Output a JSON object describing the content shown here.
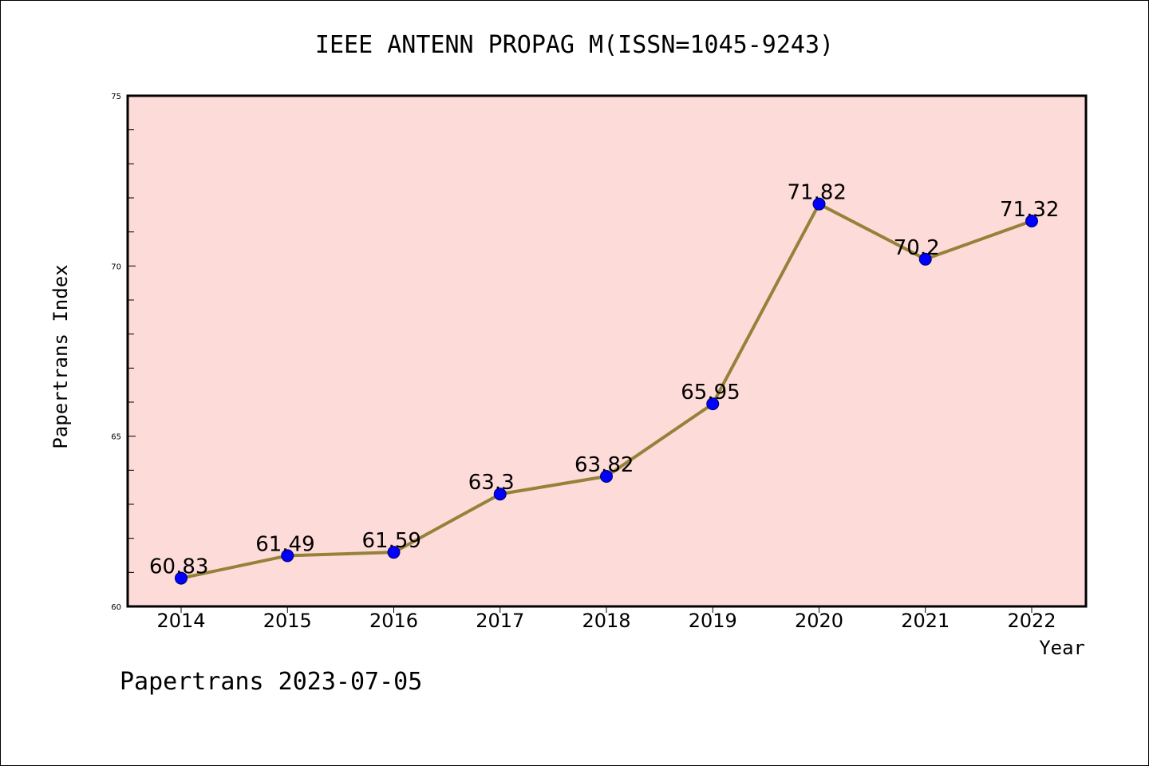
{
  "chart_data": {
    "type": "line",
    "title": "IEEE ANTENN PROPAG M(ISSN=1045-9243)",
    "xlabel": "Year",
    "ylabel": "Papertrans Index",
    "categories": [
      "2014",
      "2015",
      "2016",
      "2017",
      "2018",
      "2019",
      "2020",
      "2021",
      "2022"
    ],
    "values": [
      60.83,
      61.49,
      61.59,
      63.3,
      63.82,
      65.95,
      71.82,
      70.2,
      71.32
    ],
    "data_labels": [
      "60.83",
      "61.49",
      "61.59",
      "63.3",
      "63.82",
      "65.95",
      "71.82",
      "70.2",
      "71.32"
    ],
    "ylim": [
      60,
      75
    ],
    "yticks": [
      "60",
      "65",
      "70",
      "75"
    ],
    "grid": false,
    "legend": "none",
    "colors": {
      "plot_background": "#fddbd8",
      "line": "#94823a",
      "marker": "#0000ff",
      "marker_edge": "#000066"
    }
  },
  "footer": "Papertrans 2023-07-05"
}
